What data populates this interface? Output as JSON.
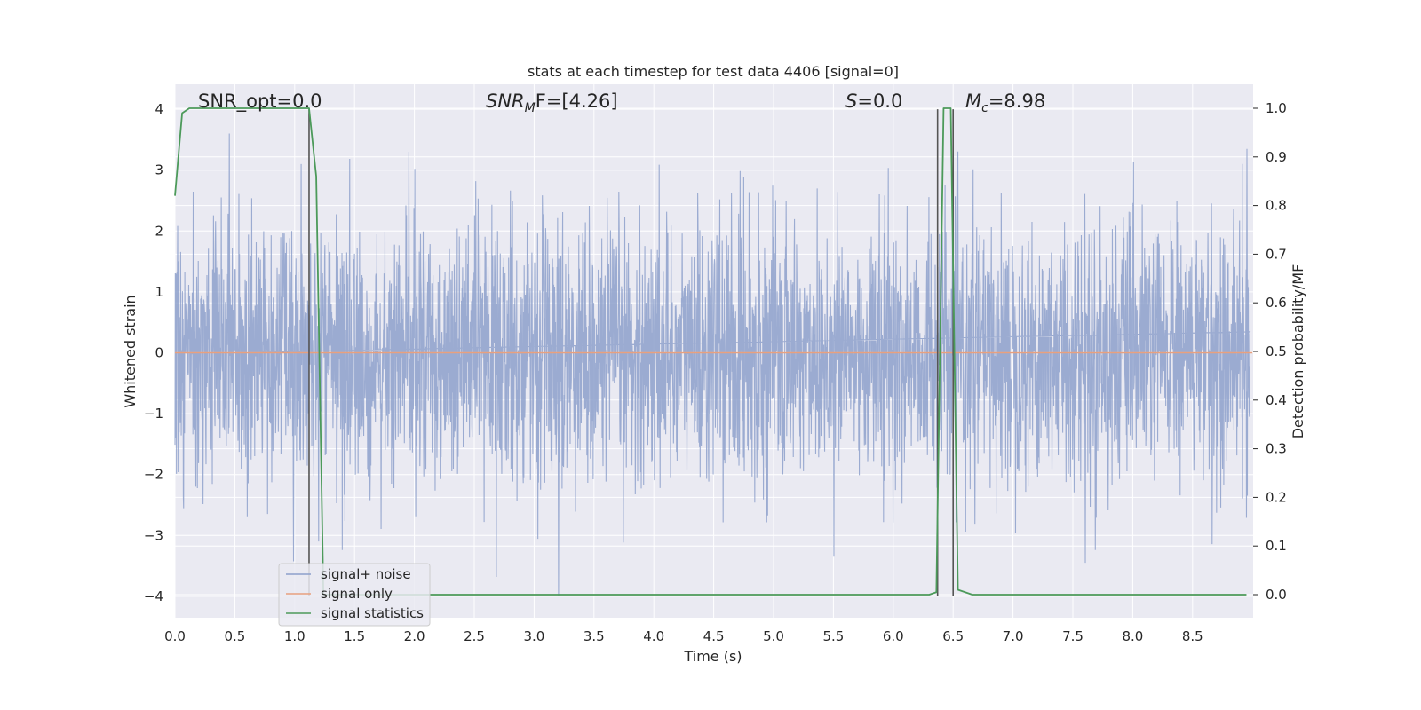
{
  "chart_data": {
    "type": "line",
    "title": "stats at each timestep for test data 4406 [signal=0]",
    "xlabel": "Time (s)",
    "ylabel_left": "Whitened strain",
    "ylabel_right": "Detection probability/MF",
    "xlim": [
      0.0,
      9.0
    ],
    "ylim_left": [
      -4.35,
      4.4
    ],
    "ylim_right": [
      -0.05,
      1.035
    ],
    "xticks": [
      "0.0",
      "0.5",
      "1.0",
      "1.5",
      "2.0",
      "2.5",
      "3.0",
      "3.5",
      "4.0",
      "4.5",
      "5.0",
      "5.5",
      "6.0",
      "6.5",
      "7.0",
      "7.5",
      "8.0",
      "8.5"
    ],
    "yticks_left": [
      "4",
      "3",
      "2",
      "1",
      "0",
      "−1",
      "−2",
      "−3",
      "−4"
    ],
    "yticks_right": [
      "1.0",
      "0.9",
      "0.8",
      "0.7",
      "0.6",
      "0.5",
      "0.4",
      "0.3",
      "0.2",
      "0.1",
      "0.0"
    ],
    "grid": true,
    "legend_position": "lower-left",
    "annotations": {
      "snr_opt": "SNR_opt=0.0",
      "snr_mf_base": "SNR",
      "snr_mf_sub": "M",
      "snr_mf_rest": "F=[4.26]",
      "s_sym": "S",
      "s_rest": "=0.0",
      "mc_base": "M",
      "mc_sub": "c",
      "mc_rest": "=8.98"
    },
    "series": [
      {
        "name": "signal+ noise",
        "axis": "left",
        "color": "#8da0cb",
        "style": "dense noise, |amplitude| mostly below 1.6 with spikes up to about 3.6 and down to about -4.0",
        "extremes": {
          "x": [
            0.45,
            1.05,
            1.95,
            3.2,
            5.5,
            7.6,
            8.95
          ],
          "y": [
            3.6,
            3.1,
            3.3,
            -4.0,
            -3.35,
            -3.45,
            3.35
          ]
        }
      },
      {
        "name": "signal only",
        "axis": "left",
        "color": "#e8a07e",
        "x": [
          0.0,
          9.0
        ],
        "y": [
          0.0,
          0.0
        ]
      },
      {
        "name": "signal statistics",
        "axis": "right",
        "color": "#4c9a5a",
        "x": [
          0.0,
          0.06,
          0.12,
          1.12,
          1.18,
          1.24,
          1.28,
          2.0,
          6.3,
          6.36,
          6.42,
          6.48,
          6.54,
          6.6,
          6.66,
          8.95
        ],
        "y": [
          0.82,
          0.99,
          1.0,
          1.0,
          0.86,
          0.0,
          0.0,
          0.0,
          0.0,
          0.005,
          1.0,
          1.0,
          0.01,
          0.005,
          0.0,
          0.0
        ]
      }
    ],
    "vertical_markers_x": [
      1.12,
      6.37,
      6.5
    ]
  }
}
